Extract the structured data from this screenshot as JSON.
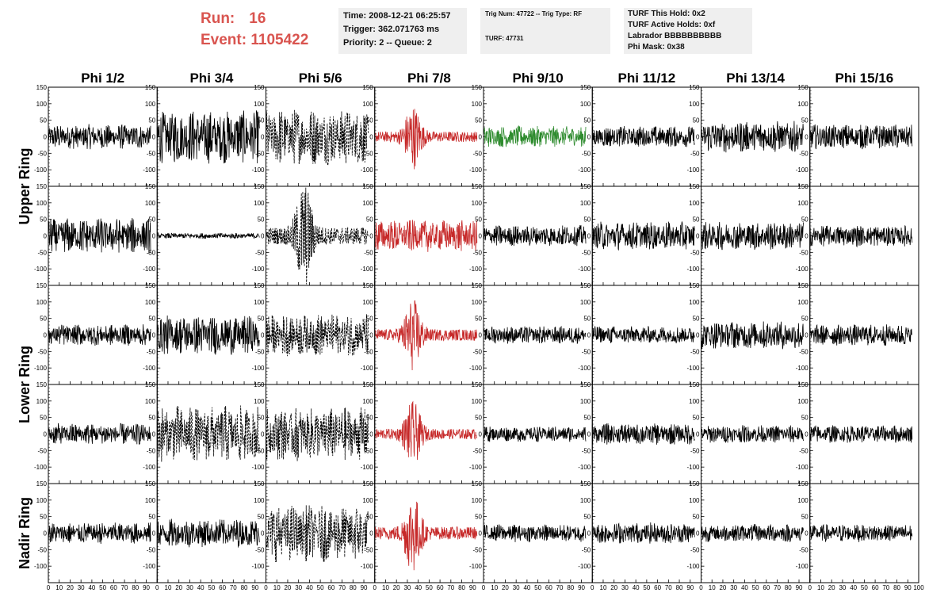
{
  "header": {
    "run_label": "Run:",
    "run_value": "16",
    "event_label": "Event:",
    "event_value": "1105422",
    "time_text": "Time: 2008-12-21 06:25:57",
    "trigger_text": "Trigger: 362.071763 ms",
    "priority_text": "Priority: 2 -- Queue: 2",
    "trig_num_text": "Trig Num: 47722 -- Trig Type: RF",
    "turf_text": "TURF: 47731",
    "turf_hold_text": "TURF This Hold: 0x2",
    "turf_active_text": "TURF Active Holds: 0xf",
    "labrador_text": "Labrador BBBBBBBBBB",
    "phi_mask_text": "Phi Mask: 0x38"
  },
  "chart_data": {
    "type": "line",
    "columns": [
      "Phi 1/2",
      "Phi 3/4",
      "Phi 5/6",
      "Phi 7/8",
      "Phi 9/10",
      "Phi 11/12",
      "Phi 13/14",
      "Phi 15/16"
    ],
    "row_labels": [
      "Upper Ring",
      "Lower Ring",
      "Nadir Ring"
    ],
    "xlim": [
      0,
      100
    ],
    "ylim": [
      -150,
      150
    ],
    "x_ticks": [
      0,
      10,
      20,
      30,
      40,
      50,
      60,
      70,
      80,
      90,
      100
    ],
    "y_ticks": [
      -100,
      -50,
      0,
      50,
      100,
      150
    ],
    "colors": {
      "normal": "#000000",
      "triggered": "#c62828",
      "hold": "#2e8b2e"
    },
    "panels": [
      [
        {
          "amp": 35,
          "style": "solid",
          "color": "normal",
          "burst": 0
        },
        {
          "amp": 75,
          "style": "solid",
          "color": "normal",
          "burst": 0
        },
        {
          "amp": 80,
          "style": "dashed",
          "color": "normal",
          "burst": 0
        },
        {
          "amp": 45,
          "style": "solid",
          "color": "triggered",
          "burst": 1
        },
        {
          "amp": 30,
          "style": "solid",
          "color": "hold",
          "burst": 0
        },
        {
          "amp": 30,
          "style": "solid",
          "color": "normal",
          "burst": 0
        },
        {
          "amp": 45,
          "style": "solid",
          "color": "normal",
          "burst": 0
        },
        {
          "amp": 35,
          "style": "solid",
          "color": "normal",
          "burst": 0
        }
      ],
      [
        {
          "amp": 50,
          "style": "solid",
          "color": "normal",
          "burst": 0
        },
        {
          "amp": 8,
          "style": "solid",
          "color": "normal",
          "burst": 0
        },
        {
          "amp": 75,
          "style": "dashed",
          "color": "normal",
          "burst": 1
        },
        {
          "amp": 45,
          "style": "solid",
          "color": "triggered",
          "burst": 0
        },
        {
          "amp": 30,
          "style": "solid",
          "color": "normal",
          "burst": 0
        },
        {
          "amp": 40,
          "style": "solid",
          "color": "normal",
          "burst": 0
        },
        {
          "amp": 40,
          "style": "solid",
          "color": "normal",
          "burst": 0
        },
        {
          "amp": 30,
          "style": "solid",
          "color": "normal",
          "burst": 0
        }
      ],
      [
        {
          "amp": 30,
          "style": "solid",
          "color": "normal",
          "burst": 0
        },
        {
          "amp": 55,
          "style": "solid",
          "color": "normal",
          "burst": 0
        },
        {
          "amp": 60,
          "style": "dashed",
          "color": "normal",
          "burst": 0
        },
        {
          "amp": 50,
          "style": "solid",
          "color": "triggered",
          "burst": 1
        },
        {
          "amp": 25,
          "style": "solid",
          "color": "normal",
          "burst": 0
        },
        {
          "amp": 25,
          "style": "solid",
          "color": "normal",
          "burst": 0
        },
        {
          "amp": 40,
          "style": "solid",
          "color": "normal",
          "burst": 0
        },
        {
          "amp": 30,
          "style": "solid",
          "color": "normal",
          "burst": 0
        }
      ],
      [
        {
          "amp": 30,
          "style": "solid",
          "color": "normal",
          "burst": 0
        },
        {
          "amp": 80,
          "style": "dashed",
          "color": "normal",
          "burst": 0
        },
        {
          "amp": 75,
          "style": "dashed",
          "color": "normal",
          "burst": 0
        },
        {
          "amp": 45,
          "style": "solid",
          "color": "triggered",
          "burst": 1
        },
        {
          "amp": 22,
          "style": "solid",
          "color": "normal",
          "burst": 0
        },
        {
          "amp": 30,
          "style": "solid",
          "color": "normal",
          "burst": 0
        },
        {
          "amp": 25,
          "style": "solid",
          "color": "normal",
          "burst": 0
        },
        {
          "amp": 25,
          "style": "solid",
          "color": "normal",
          "burst": 0
        }
      ],
      [
        {
          "amp": 30,
          "style": "solid",
          "color": "normal",
          "burst": 0
        },
        {
          "amp": 40,
          "style": "solid",
          "color": "normal",
          "burst": 0
        },
        {
          "amp": 80,
          "style": "dashed",
          "color": "normal",
          "burst": 0
        },
        {
          "amp": 55,
          "style": "solid",
          "color": "triggered",
          "burst": 1
        },
        {
          "amp": 25,
          "style": "solid",
          "color": "normal",
          "burst": 0
        },
        {
          "amp": 30,
          "style": "solid",
          "color": "normal",
          "burst": 0
        },
        {
          "amp": 25,
          "style": "solid",
          "color": "normal",
          "burst": 0
        },
        {
          "amp": 25,
          "style": "solid",
          "color": "normal",
          "burst": 0
        }
      ]
    ]
  }
}
